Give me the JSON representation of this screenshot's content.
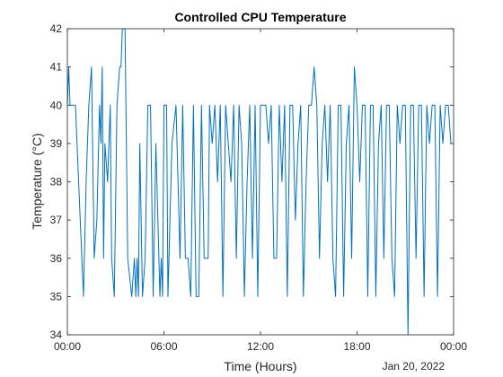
{
  "chart_data": {
    "type": "line",
    "title": "Controlled CPU Temperature",
    "xlabel": "Time (Hours)",
    "ylabel": "Temperature (°C)",
    "date_label": "Jan 20, 2022",
    "xlim": [
      "00:00",
      "24:00"
    ],
    "ylim": [
      34,
      42
    ],
    "x_ticks": [
      "00:00",
      "06:00",
      "12:00",
      "18:00",
      "00:00"
    ],
    "y_ticks": [
      "34",
      "35",
      "36",
      "37",
      "38",
      "39",
      "40",
      "41",
      "42"
    ],
    "grid": false,
    "line_color": "#0072bd",
    "series": [
      {
        "x": [
          "00:00",
          "00:05",
          "00:10",
          "00:20",
          "00:30",
          "01:00",
          "01:10",
          "01:20",
          "01:30",
          "01:40",
          "01:50",
          "02:00",
          "02:05",
          "02:10",
          "02:15",
          "02:20",
          "02:30",
          "02:40",
          "02:45",
          "02:55",
          "03:05",
          "03:15",
          "03:20",
          "03:25",
          "03:35",
          "03:45",
          "04:00",
          "04:10",
          "04:15",
          "04:20",
          "04:25",
          "04:30",
          "04:40",
          "04:50",
          "05:00",
          "05:10",
          "05:20",
          "05:30",
          "05:45",
          "05:50",
          "05:55",
          "06:00",
          "06:10",
          "06:15",
          "06:30",
          "06:45",
          "07:00",
          "07:10",
          "07:20",
          "07:30",
          "07:40",
          "07:50",
          "08:00",
          "08:10",
          "08:20",
          "08:30",
          "08:45",
          "08:50",
          "09:00",
          "09:10",
          "09:20",
          "09:30",
          "09:40",
          "09:50",
          "10:00",
          "10:10",
          "10:20",
          "10:30",
          "10:40",
          "10:50",
          "11:00",
          "11:10",
          "11:20",
          "11:30",
          "11:40",
          "11:50",
          "12:00",
          "12:10",
          "12:20",
          "12:30",
          "12:40",
          "12:50",
          "13:00",
          "13:10",
          "13:20",
          "13:30",
          "13:40",
          "13:50",
          "14:00",
          "14:10",
          "14:20",
          "14:30",
          "14:40",
          "14:50",
          "15:00",
          "15:10",
          "15:20",
          "15:30",
          "15:40",
          "15:50",
          "16:00",
          "16:10",
          "16:20",
          "16:30",
          "16:40",
          "16:50",
          "17:00",
          "17:10",
          "17:20",
          "17:30",
          "17:40",
          "17:50",
          "18:00",
          "18:10",
          "18:20",
          "18:30",
          "18:40",
          "18:50",
          "19:00",
          "19:10",
          "19:20",
          "19:30",
          "19:40",
          "19:50",
          "20:00",
          "20:10",
          "20:20",
          "20:30",
          "20:40",
          "20:50",
          "21:00",
          "21:10",
          "21:20",
          "21:30",
          "21:40",
          "21:50",
          "22:00",
          "22:10",
          "22:20",
          "22:30",
          "22:40",
          "22:50",
          "23:00",
          "23:10",
          "23:20",
          "23:30",
          "23:40",
          "23:50",
          "24:00"
        ],
        "values": [
          40,
          41,
          40,
          40,
          40,
          35,
          38,
          40,
          41,
          36,
          37,
          40,
          39,
          41,
          36,
          39,
          38,
          40,
          36,
          35,
          40,
          41,
          41,
          42,
          42,
          36,
          35,
          36,
          35,
          36,
          35,
          39,
          35,
          36,
          40,
          40,
          35,
          39,
          35,
          36,
          35,
          40,
          40,
          35,
          39,
          40,
          36,
          40,
          36,
          36,
          35,
          40,
          35,
          35,
          40,
          36,
          36,
          40,
          39,
          40,
          38,
          40,
          35,
          40,
          39,
          38,
          40,
          36,
          40,
          39,
          35,
          38,
          40,
          36,
          40,
          35,
          40,
          40,
          40,
          39,
          40,
          36,
          36,
          40,
          38,
          40,
          35,
          40,
          40,
          37,
          39,
          40,
          35,
          38,
          40,
          40,
          41,
          40,
          36,
          39,
          40,
          38,
          40,
          36,
          35,
          40,
          40,
          35,
          39,
          40,
          36,
          41,
          40,
          38,
          40,
          40,
          35,
          40,
          40,
          35,
          39,
          40,
          36,
          40,
          40,
          36,
          35,
          40,
          39,
          40,
          40,
          34,
          40,
          40,
          36,
          40,
          40,
          35,
          40,
          39,
          40,
          40,
          35,
          40,
          39,
          40,
          40,
          39,
          39
        ]
      }
    ]
  }
}
